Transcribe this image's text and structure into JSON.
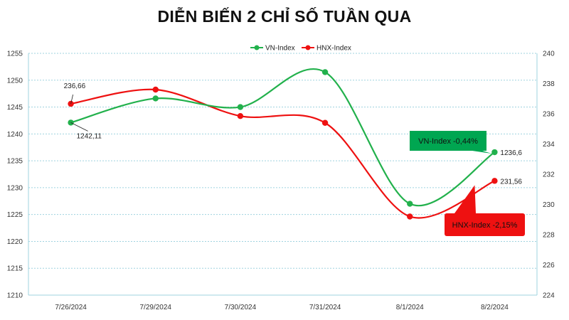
{
  "chart_data": {
    "type": "line",
    "title": "DIỄN BIẾN 2 CHỈ SỐ TUẦN QUA",
    "categories": [
      "7/26/2024",
      "7/29/2024",
      "7/30/2024",
      "7/31/2024",
      "8/1/2024",
      "8/2/2024"
    ],
    "series": [
      {
        "name": "VN-Index",
        "axis": "left",
        "color": "#22b14c",
        "values": [
          1242.11,
          1246.6,
          1245.0,
          1251.5,
          1227.0,
          1236.6
        ]
      },
      {
        "name": "HNX-Index",
        "axis": "right",
        "color": "#ee1111",
        "values": [
          236.66,
          237.6,
          235.85,
          235.4,
          229.2,
          231.56
        ]
      }
    ],
    "ylim_left": [
      1210,
      1255
    ],
    "yticks_left": [
      1210,
      1215,
      1220,
      1225,
      1230,
      1235,
      1240,
      1245,
      1250,
      1255
    ],
    "ylim_right": [
      224,
      240
    ],
    "yticks_right": [
      224,
      226,
      228,
      230,
      232,
      234,
      236,
      238,
      240
    ],
    "grid": true,
    "legend_position": "top-center",
    "data_labels": [
      {
        "series": 1,
        "index": 0,
        "text": "236,66"
      },
      {
        "series": 0,
        "index": 0,
        "text": "1242,11"
      },
      {
        "series": 0,
        "index": 5,
        "text": "1236,6"
      },
      {
        "series": 1,
        "index": 5,
        "text": "231,56"
      }
    ],
    "annotations": [
      {
        "series": 0,
        "text": "VN-Index -0,44%",
        "color": "#00a651"
      },
      {
        "series": 1,
        "text": "HNX-Index -2,15%",
        "color": "#ee1111"
      }
    ]
  }
}
